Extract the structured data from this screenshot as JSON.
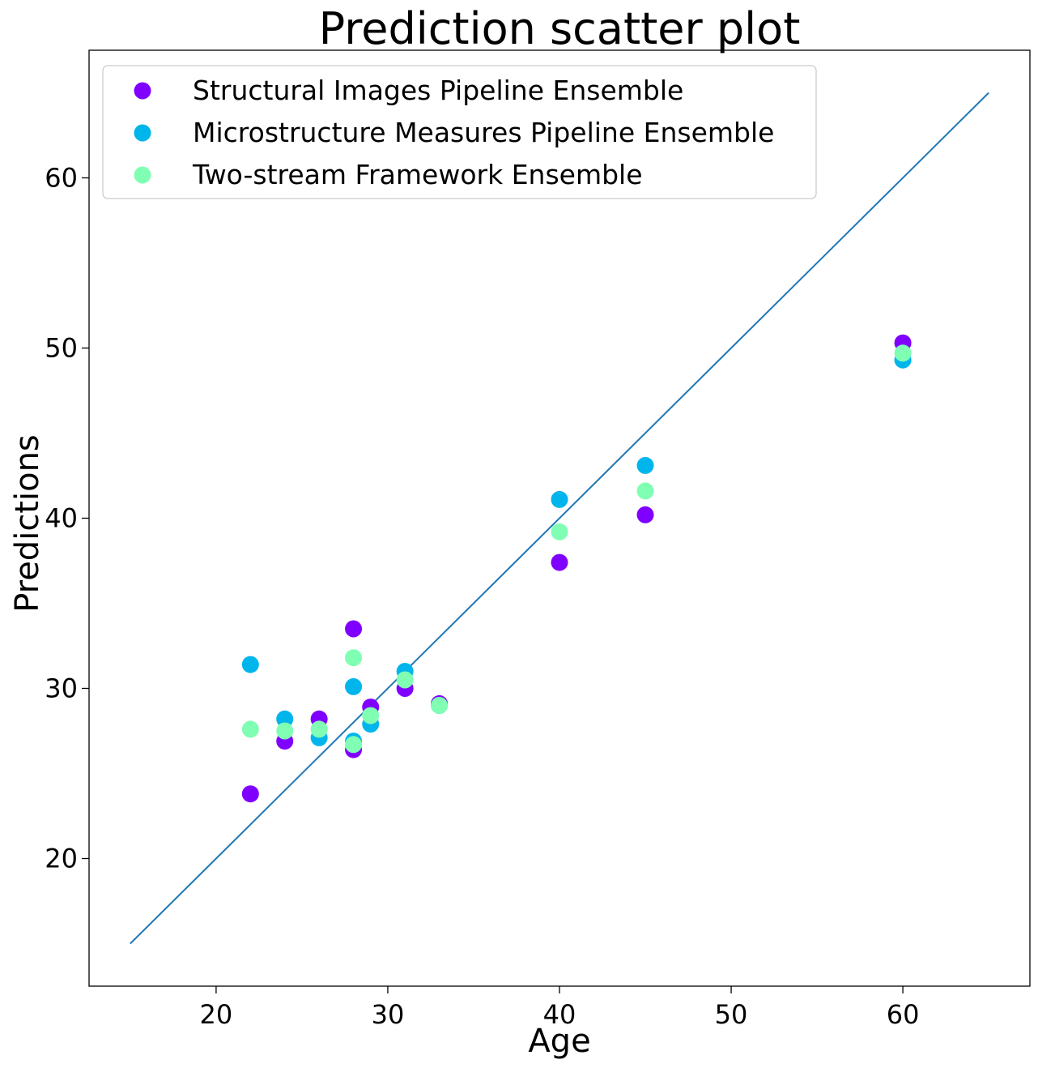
{
  "chart_data": {
    "type": "scatter",
    "title": "Prediction scatter plot",
    "xlabel": "Age",
    "ylabel": "Predictions",
    "xlim": [
      12.6,
      67.4
    ],
    "ylim": [
      12.5,
      67.5
    ],
    "xticks": [
      20,
      30,
      40,
      50,
      60
    ],
    "yticks": [
      20,
      30,
      40,
      50,
      60
    ],
    "grid": false,
    "legend_position": "top-left",
    "reference_line": {
      "x": [
        15,
        65
      ],
      "y": [
        15,
        65
      ],
      "color": "#1f77b4"
    },
    "series": [
      {
        "name": "Structural Images Pipeline Ensemble",
        "color": "#8000ff",
        "x": [
          22,
          24,
          26,
          28,
          28,
          29,
          31,
          33,
          40,
          45,
          60
        ],
        "y": [
          23.8,
          26.9,
          28.2,
          26.4,
          33.5,
          28.9,
          30.0,
          29.1,
          37.4,
          40.2,
          50.3
        ]
      },
      {
        "name": "Microstructure Measures Pipeline Ensemble",
        "color": "#00b5eb",
        "x": [
          22,
          24,
          26,
          28,
          28,
          29,
          31,
          33,
          40,
          45,
          60
        ],
        "y": [
          31.4,
          28.2,
          27.1,
          26.9,
          30.1,
          27.9,
          31.0,
          29.0,
          41.1,
          43.1,
          49.3
        ]
      },
      {
        "name": "Two-stream Framework Ensemble",
        "color": "#80ffb4",
        "x": [
          22,
          24,
          26,
          28,
          28,
          29,
          31,
          33,
          40,
          45,
          60
        ],
        "y": [
          27.6,
          27.5,
          27.6,
          26.7,
          31.8,
          28.4,
          30.5,
          29.0,
          39.2,
          41.6,
          49.7
        ]
      }
    ]
  }
}
